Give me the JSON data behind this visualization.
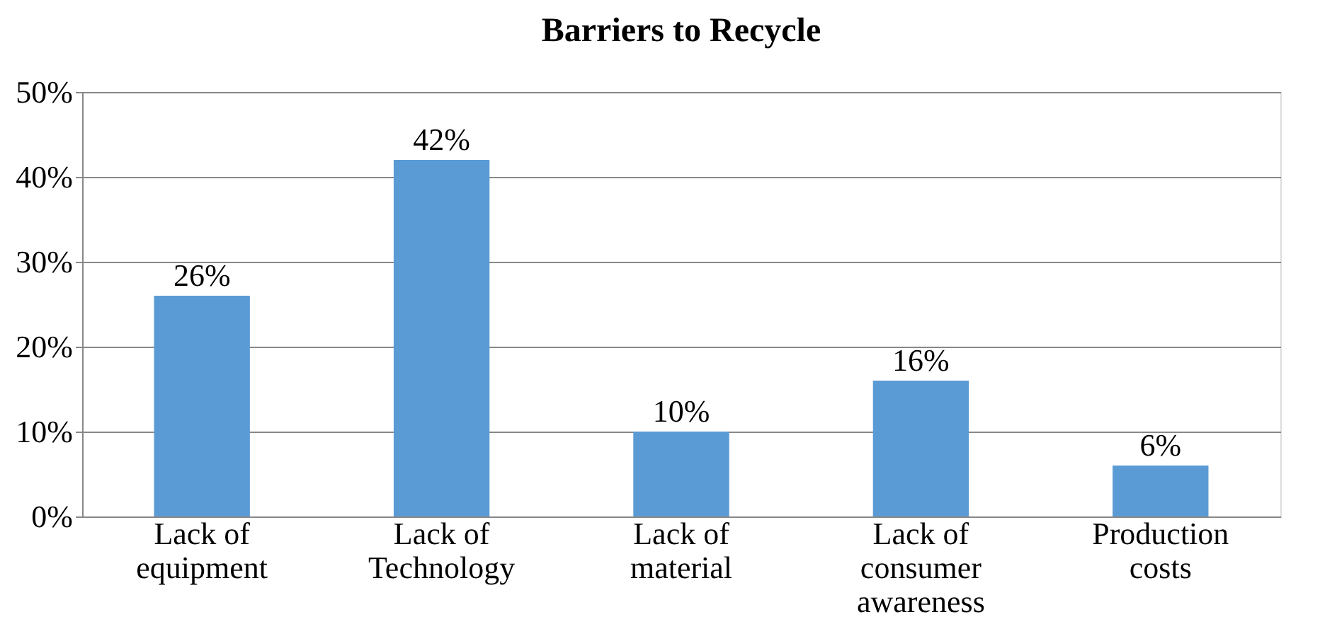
{
  "chart_data": {
    "type": "bar",
    "title": "Barriers to Recycle",
    "categories": [
      "Lack of equipment",
      "Lack of Technology",
      "Lack of material",
      "Lack of consumer awareness",
      "Production costs"
    ],
    "values": [
      26,
      42,
      10,
      16,
      6
    ],
    "color": "#5b9bd5",
    "value_labels": [
      "26%",
      "42%",
      "10%",
      "16%",
      "6%"
    ],
    "ylim": [
      0,
      50
    ],
    "yticks": [
      {
        "value": 0,
        "label": "0%"
      },
      {
        "value": 10,
        "label": "10%"
      },
      {
        "value": 20,
        "label": "20%"
      },
      {
        "value": 30,
        "label": "30%"
      },
      {
        "value": 40,
        "label": "40%"
      },
      {
        "value": 50,
        "label": "50%"
      }
    ],
    "grid": "y"
  }
}
